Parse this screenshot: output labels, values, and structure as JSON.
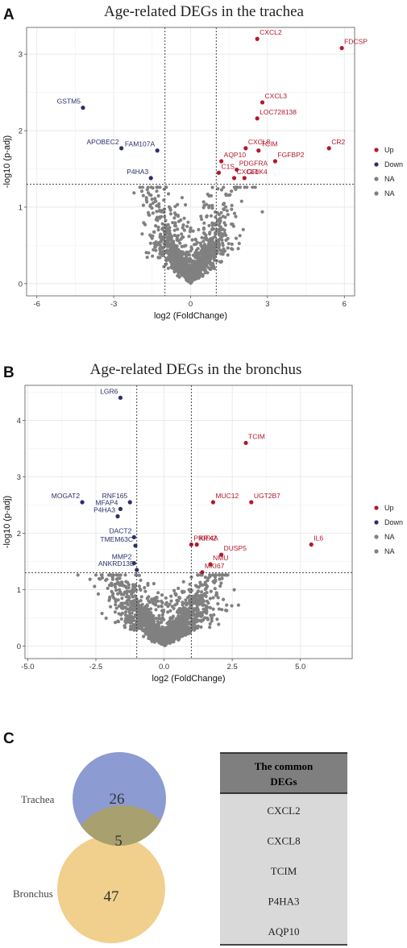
{
  "colors": {
    "up": "#b2182b",
    "down": "#2b2f6b",
    "na": "#808080",
    "trachea": "#8c9bd2",
    "bronchus": "#f0d08c",
    "overlap": "#a8a06e",
    "table_head": "#7f7f7f",
    "table_body": "#d9d9d9"
  },
  "chart_data": [
    {
      "type": "scatter",
      "panel": "A",
      "title": "Age-related DEGs in the trachea",
      "xlabel": "log2 (FoldChange)",
      "ylabel": "-log10 (p-adj)",
      "xlim": [
        -6.4,
        6.4
      ],
      "ylim": [
        -0.16,
        3.35
      ],
      "xticks": [
        -6,
        -3,
        0,
        3,
        6
      ],
      "yticks": [
        0,
        1,
        2,
        3
      ],
      "vlines": [
        -1,
        1
      ],
      "hline": 1.3,
      "grid": true,
      "legend_position": "right",
      "legend": [
        {
          "label": "Up",
          "class": "up"
        },
        {
          "label": "Down",
          "class": "down"
        },
        {
          "label": "NA",
          "class": "na"
        },
        {
          "label": "NA",
          "class": "na"
        }
      ],
      "labeled_points": [
        {
          "gene": "CXCL2",
          "x": 2.6,
          "y": 3.2,
          "class": "up"
        },
        {
          "gene": "FDCSP",
          "x": 5.9,
          "y": 3.08,
          "class": "up"
        },
        {
          "gene": "CXCL3",
          "x": 2.8,
          "y": 2.37,
          "class": "up"
        },
        {
          "gene": "LOC728138",
          "x": 2.6,
          "y": 2.16,
          "class": "up"
        },
        {
          "gene": "CXCL8",
          "x": 2.15,
          "y": 1.77,
          "class": "up"
        },
        {
          "gene": "TCIM",
          "x": 2.65,
          "y": 1.74,
          "class": "up"
        },
        {
          "gene": "CR2",
          "x": 5.4,
          "y": 1.77,
          "class": "up"
        },
        {
          "gene": "AQP10",
          "x": 1.2,
          "y": 1.6,
          "class": "up"
        },
        {
          "gene": "FGFBP2",
          "x": 3.3,
          "y": 1.6,
          "class": "up"
        },
        {
          "gene": "PDGFRA",
          "x": 1.8,
          "y": 1.49,
          "class": "up"
        },
        {
          "gene": "C1S",
          "x": 1.1,
          "y": 1.45,
          "class": "up"
        },
        {
          "gene": "CXCL1",
          "x": 1.7,
          "y": 1.38,
          "class": "up"
        },
        {
          "gene": "GRIK4",
          "x": 2.1,
          "y": 1.38,
          "class": "up"
        },
        {
          "gene": "GSTM5",
          "x": -4.2,
          "y": 2.3,
          "class": "down"
        },
        {
          "gene": "APOBEC2",
          "x": -2.7,
          "y": 1.77,
          "class": "down"
        },
        {
          "gene": "FAM107A",
          "x": -1.3,
          "y": 1.74,
          "class": "down"
        },
        {
          "gene": "P4HA3",
          "x": -1.55,
          "y": 1.38,
          "class": "down"
        }
      ]
    },
    {
      "type": "scatter",
      "panel": "B",
      "title": "Age-related DEGs in the bronchus",
      "xlabel": "log2 (FoldChange)",
      "ylabel": "-log10 (p-adj)",
      "xlim": [
        -5.1,
        6.9
      ],
      "ylim": [
        -0.22,
        4.62
      ],
      "xticks": [
        -5.0,
        -2.5,
        0.0,
        2.5,
        5.0
      ],
      "xtick_labels": [
        "-5.0",
        "-2.5",
        "0.0",
        "2.5",
        "5.0"
      ],
      "yticks": [
        0,
        1,
        2,
        3,
        4
      ],
      "vlines": [
        -1,
        1
      ],
      "hline": 1.3,
      "grid": true,
      "legend_position": "right",
      "legend": [
        {
          "label": "Up",
          "class": "up"
        },
        {
          "label": "Down",
          "class": "down"
        },
        {
          "label": "NA",
          "class": "na"
        },
        {
          "label": "NA",
          "class": "na"
        }
      ],
      "labeled_points": [
        {
          "gene": "LGR6",
          "x": -1.6,
          "y": 4.4,
          "class": "down"
        },
        {
          "gene": "TCIM",
          "x": 3.0,
          "y": 3.6,
          "class": "up"
        },
        {
          "gene": "UGT2B7",
          "x": 3.2,
          "y": 2.55,
          "class": "up"
        },
        {
          "gene": "MUC12",
          "x": 1.8,
          "y": 2.55,
          "class": "up"
        },
        {
          "gene": "IL6",
          "x": 5.4,
          "y": 1.8,
          "class": "up"
        },
        {
          "gene": "KIF4A",
          "x": 1.2,
          "y": 1.8,
          "class": "up"
        },
        {
          "gene": "DUSP5",
          "x": 2.1,
          "y": 1.62,
          "class": "up"
        },
        {
          "gene": "PRRX2",
          "x": 1.0,
          "y": 1.8,
          "class": "up"
        },
        {
          "gene": "NMU",
          "x": 1.7,
          "y": 1.45,
          "class": "up"
        },
        {
          "gene": "MKI67",
          "x": 1.4,
          "y": 1.31,
          "class": "up"
        },
        {
          "gene": "RNF165",
          "x": -1.25,
          "y": 2.55,
          "class": "down"
        },
        {
          "gene": "MOGAT2",
          "x": -3.0,
          "y": 2.55,
          "class": "down"
        },
        {
          "gene": "MFAP4",
          "x": -1.6,
          "y": 2.43,
          "class": "down"
        },
        {
          "gene": "P4HA3",
          "x": -1.7,
          "y": 2.3,
          "class": "down"
        },
        {
          "gene": "DACT2",
          "x": -1.1,
          "y": 1.93,
          "class": "down"
        },
        {
          "gene": "TMEM63C",
          "x": -1.05,
          "y": 1.78,
          "class": "down"
        },
        {
          "gene": "MMP2",
          "x": -1.1,
          "y": 1.47,
          "class": "down"
        },
        {
          "gene": "ANKRD13B",
          "x": -1.0,
          "y": 1.35,
          "class": "down"
        }
      ]
    }
  ],
  "panel_labels": {
    "a": "A",
    "b": "B",
    "c": "C"
  },
  "venn": {
    "set1_label": "Trachea",
    "set2_label": "Bronchus",
    "only_set1": "26",
    "overlap": "5",
    "only_set2": "47"
  },
  "common_table": {
    "header_line1": "The common",
    "header_line2": "DEGs",
    "rows": [
      "CXCL2",
      "CXCL8",
      "TCIM",
      "P4HA3",
      "AQP10"
    ]
  }
}
